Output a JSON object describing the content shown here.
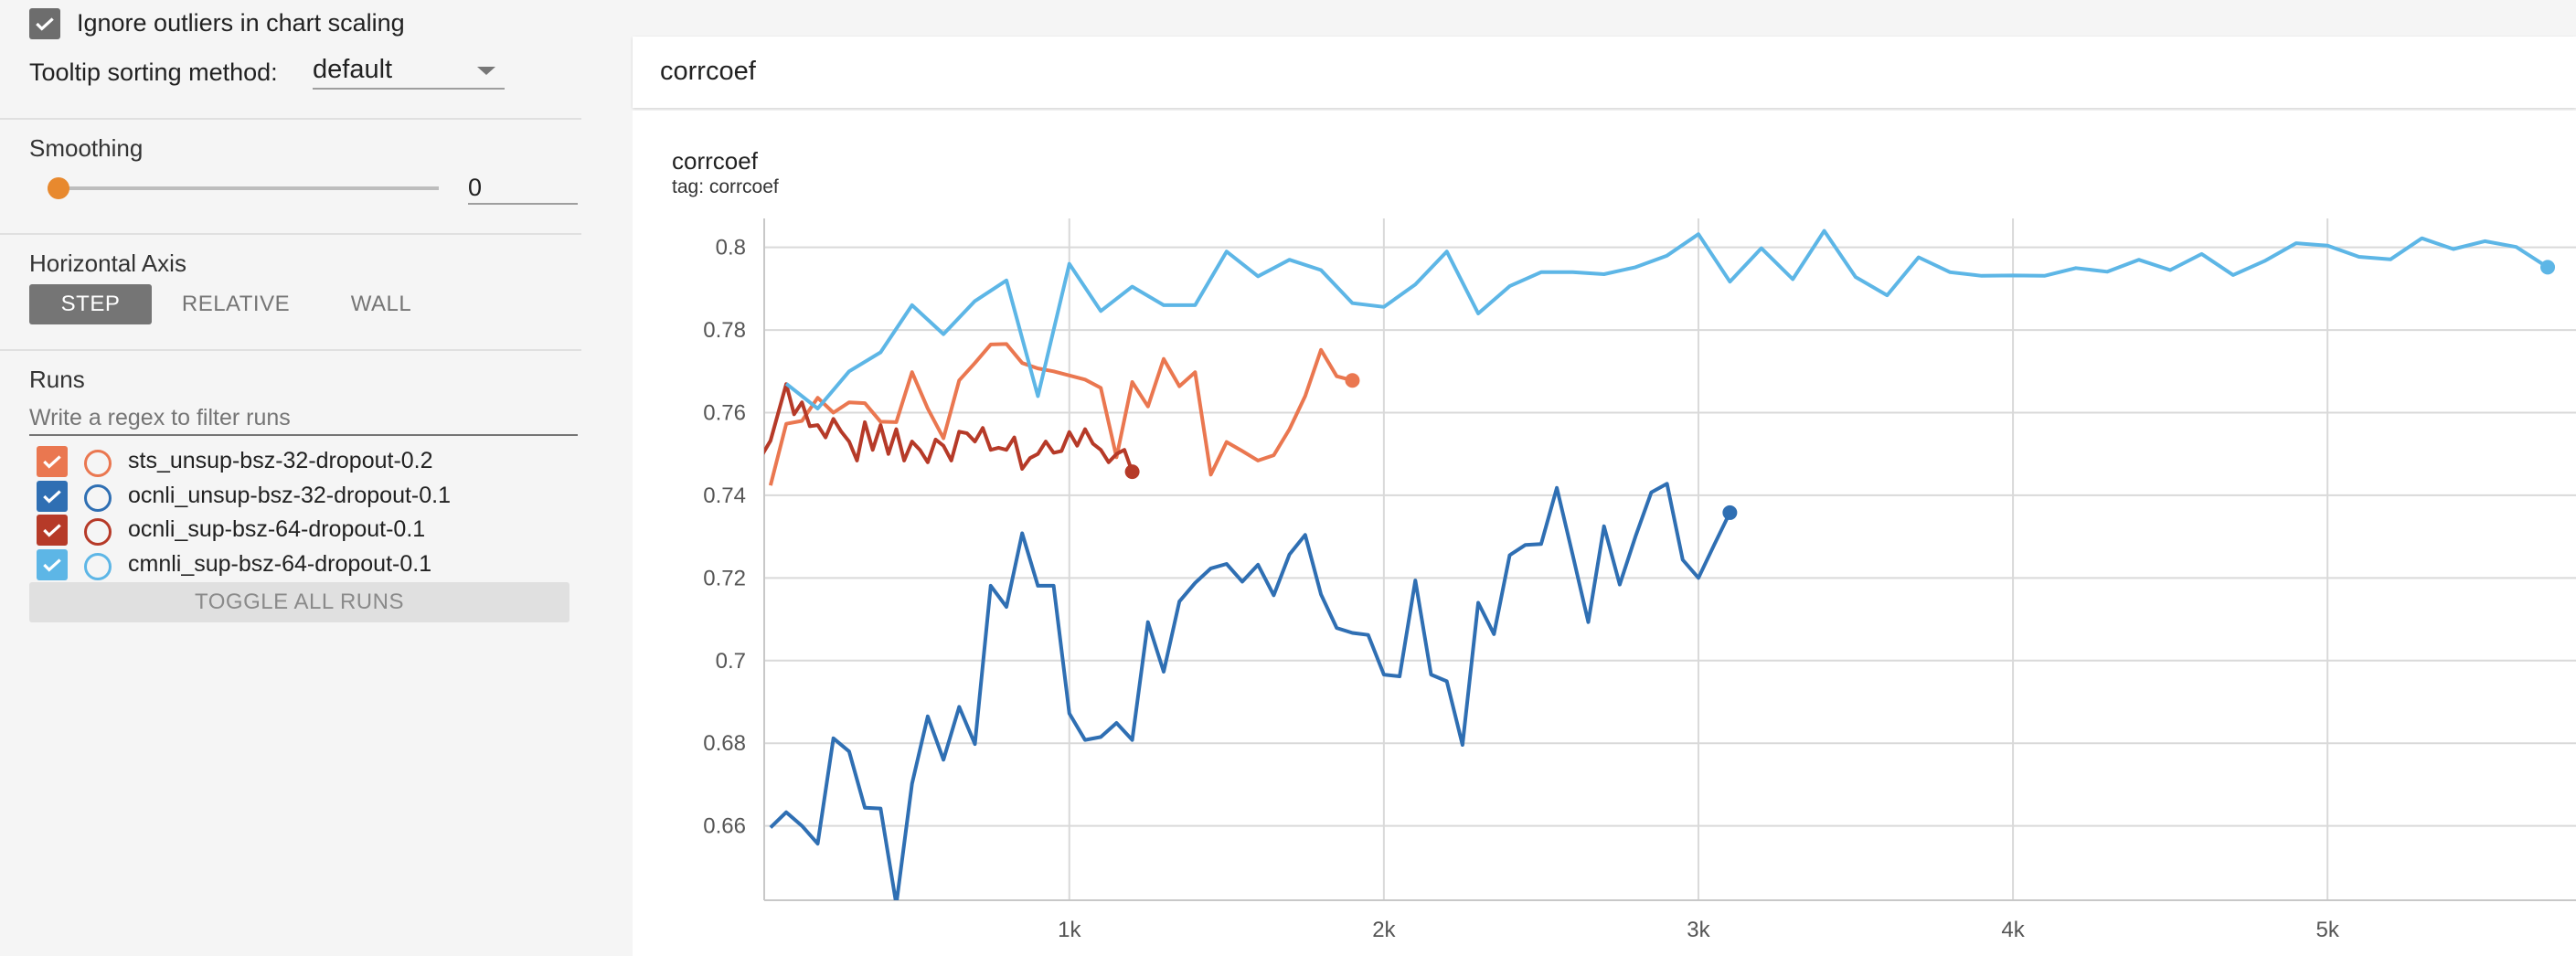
{
  "sidebar": {
    "ignore_outliers": {
      "label": "Ignore outliers in chart scaling",
      "checked": true
    },
    "tooltip_sorting": {
      "label": "Tooltip sorting method:",
      "value": "default"
    },
    "smoothing": {
      "title": "Smoothing",
      "value": "0",
      "slider_fraction": 0
    },
    "horizontal_axis": {
      "title": "Horizontal Axis",
      "options": [
        "STEP",
        "RELATIVE",
        "WALL"
      ],
      "selected": "STEP"
    },
    "runs": {
      "title": "Runs",
      "filter_placeholder": "Write a regex to filter runs",
      "items": [
        {
          "name": "sts_unsup-bsz-32-dropout-0.2",
          "color": "#ea7750",
          "checked": true
        },
        {
          "name": "ocnli_unsup-bsz-32-dropout-0.1",
          "color": "#2f6fb3",
          "checked": true
        },
        {
          "name": "ocnli_sup-bsz-64-dropout-0.1",
          "color": "#b63a28",
          "checked": true
        },
        {
          "name": "cmnli_sup-bsz-64-dropout-0.1",
          "color": "#5db6e6",
          "checked": true
        }
      ],
      "toggle_all_label": "TOGGLE ALL RUNS"
    },
    "accent_color": "#e8892e"
  },
  "main": {
    "group_title": "corrcoef",
    "card": {
      "title": "corrcoef",
      "tag": "tag: corrcoef"
    }
  },
  "chart_data": {
    "type": "line",
    "title": "corrcoef",
    "xlabel": "",
    "ylabel": "",
    "xlim": [
      30,
      5790
    ],
    "ylim": [
      0.642,
      0.807
    ],
    "grid": true,
    "x_ticks": [
      {
        "v": 1000,
        "label": "1k"
      },
      {
        "v": 2000,
        "label": "2k"
      },
      {
        "v": 3000,
        "label": "3k"
      },
      {
        "v": 4000,
        "label": "4k"
      },
      {
        "v": 5000,
        "label": "5k"
      }
    ],
    "y_ticks": [
      {
        "v": 0.66,
        "label": "0.66"
      },
      {
        "v": 0.68,
        "label": "0.68"
      },
      {
        "v": 0.7,
        "label": "0.7"
      },
      {
        "v": 0.72,
        "label": "0.72"
      },
      {
        "v": 0.74,
        "label": "0.74"
      },
      {
        "v": 0.76,
        "label": "0.76"
      },
      {
        "v": 0.78,
        "label": "0.78"
      },
      {
        "v": 0.8,
        "label": "0.8"
      }
    ],
    "series": [
      {
        "name": "sts_unsup-bsz-32-dropout-0.2",
        "color": "#ea7750",
        "points": [
          [
            50,
            0.7424
          ],
          [
            100,
            0.7573
          ],
          [
            150,
            0.758
          ],
          [
            200,
            0.7636
          ],
          [
            250,
            0.76
          ],
          [
            300,
            0.7625
          ],
          [
            350,
            0.7623
          ],
          [
            400,
            0.7578
          ],
          [
            450,
            0.7577
          ],
          [
            500,
            0.7698
          ],
          [
            550,
            0.761
          ],
          [
            600,
            0.7538
          ],
          [
            650,
            0.7678
          ],
          [
            700,
            0.772
          ],
          [
            750,
            0.7765
          ],
          [
            800,
            0.7766
          ],
          [
            850,
            0.772
          ],
          [
            900,
            0.7707
          ],
          [
            950,
            0.77
          ],
          [
            1000,
            0.769
          ],
          [
            1050,
            0.768
          ],
          [
            1100,
            0.766
          ],
          [
            1150,
            0.7492
          ],
          [
            1200,
            0.7674
          ],
          [
            1250,
            0.7615
          ],
          [
            1300,
            0.773
          ],
          [
            1350,
            0.7664
          ],
          [
            1400,
            0.7698
          ],
          [
            1450,
            0.745
          ],
          [
            1500,
            0.7529
          ],
          [
            1550,
            0.7507
          ],
          [
            1600,
            0.7484
          ],
          [
            1650,
            0.7497
          ],
          [
            1700,
            0.756
          ],
          [
            1750,
            0.764
          ],
          [
            1800,
            0.7752
          ],
          [
            1850,
            0.7688
          ],
          [
            1900,
            0.7678
          ]
        ]
      },
      {
        "name": "ocnli_unsup-bsz-32-dropout-0.1",
        "color": "#2f6fb3",
        "points": [
          [
            50,
            0.6596
          ],
          [
            100,
            0.6633
          ],
          [
            150,
            0.66
          ],
          [
            200,
            0.6557
          ],
          [
            250,
            0.6812
          ],
          [
            300,
            0.678
          ],
          [
            350,
            0.6644
          ],
          [
            400,
            0.6642
          ],
          [
            450,
            0.641
          ],
          [
            500,
            0.6702
          ],
          [
            550,
            0.6865
          ],
          [
            600,
            0.676
          ],
          [
            650,
            0.6888
          ],
          [
            700,
            0.6798
          ],
          [
            750,
            0.7181
          ],
          [
            800,
            0.713
          ],
          [
            850,
            0.7308
          ],
          [
            900,
            0.7181
          ],
          [
            950,
            0.7181
          ],
          [
            1000,
            0.6872
          ],
          [
            1050,
            0.6808
          ],
          [
            1100,
            0.6815
          ],
          [
            1150,
            0.6849
          ],
          [
            1200,
            0.6808
          ],
          [
            1250,
            0.7093
          ],
          [
            1300,
            0.6973
          ],
          [
            1350,
            0.7143
          ],
          [
            1400,
            0.7188
          ],
          [
            1450,
            0.7223
          ],
          [
            1500,
            0.7234
          ],
          [
            1550,
            0.7191
          ],
          [
            1600,
            0.7232
          ],
          [
            1650,
            0.7158
          ],
          [
            1700,
            0.7257
          ],
          [
            1750,
            0.7304
          ],
          [
            1800,
            0.716
          ],
          [
            1850,
            0.7079
          ],
          [
            1900,
            0.7067
          ],
          [
            1950,
            0.7062
          ],
          [
            2000,
            0.6966
          ],
          [
            2050,
            0.6962
          ],
          [
            2100,
            0.7194
          ],
          [
            2150,
            0.6966
          ],
          [
            2200,
            0.695
          ],
          [
            2250,
            0.6796
          ],
          [
            2300,
            0.714
          ],
          [
            2350,
            0.7064
          ],
          [
            2400,
            0.7255
          ],
          [
            2450,
            0.728
          ],
          [
            2500,
            0.7282
          ],
          [
            2550,
            0.7418
          ],
          [
            2600,
            0.7257
          ],
          [
            2650,
            0.7093
          ],
          [
            2700,
            0.7325
          ],
          [
            2750,
            0.7184
          ],
          [
            2800,
            0.73
          ],
          [
            2850,
            0.7407
          ],
          [
            2900,
            0.7428
          ],
          [
            2950,
            0.7244
          ],
          [
            3000,
            0.72
          ],
          [
            3050,
            0.728
          ],
          [
            3100,
            0.7358
          ]
        ]
      },
      {
        "name": "ocnli_sup-bsz-64-dropout-0.1",
        "color": "#b63a28",
        "points": [
          [
            25,
            0.75
          ],
          [
            50,
            0.7532
          ],
          [
            100,
            0.7669
          ],
          [
            125,
            0.7596
          ],
          [
            150,
            0.7625
          ],
          [
            175,
            0.7567
          ],
          [
            200,
            0.757
          ],
          [
            225,
            0.754
          ],
          [
            250,
            0.7585
          ],
          [
            275,
            0.7554
          ],
          [
            300,
            0.753
          ],
          [
            325,
            0.7484
          ],
          [
            350,
            0.7577
          ],
          [
            375,
            0.751
          ],
          [
            400,
            0.757
          ],
          [
            425,
            0.75
          ],
          [
            450,
            0.756
          ],
          [
            475,
            0.7484
          ],
          [
            500,
            0.753
          ],
          [
            525,
            0.751
          ],
          [
            550,
            0.748
          ],
          [
            575,
            0.7535
          ],
          [
            600,
            0.752
          ],
          [
            625,
            0.7484
          ],
          [
            650,
            0.7554
          ],
          [
            675,
            0.755
          ],
          [
            700,
            0.753
          ],
          [
            725,
            0.7563
          ],
          [
            750,
            0.751
          ],
          [
            775,
            0.7515
          ],
          [
            800,
            0.751
          ],
          [
            825,
            0.754
          ],
          [
            850,
            0.7464
          ],
          [
            875,
            0.749
          ],
          [
            900,
            0.75
          ],
          [
            925,
            0.753
          ],
          [
            950,
            0.7503
          ],
          [
            975,
            0.7507
          ],
          [
            1000,
            0.7553
          ],
          [
            1025,
            0.752
          ],
          [
            1050,
            0.756
          ],
          [
            1075,
            0.7525
          ],
          [
            1100,
            0.751
          ],
          [
            1125,
            0.748
          ],
          [
            1150,
            0.75
          ],
          [
            1175,
            0.751
          ],
          [
            1200,
            0.7457
          ]
        ]
      },
      {
        "name": "cmnli_sup-bsz-64-dropout-0.1",
        "color": "#5db6e6",
        "points": [
          [
            100,
            0.767
          ],
          [
            200,
            0.761
          ],
          [
            300,
            0.77
          ],
          [
            400,
            0.7746
          ],
          [
            500,
            0.786
          ],
          [
            600,
            0.779
          ],
          [
            700,
            0.787
          ],
          [
            800,
            0.792
          ],
          [
            900,
            0.764
          ],
          [
            1000,
            0.796
          ],
          [
            1100,
            0.7846
          ],
          [
            1200,
            0.7905
          ],
          [
            1300,
            0.786
          ],
          [
            1400,
            0.786
          ],
          [
            1500,
            0.799
          ],
          [
            1600,
            0.793
          ],
          [
            1700,
            0.797
          ],
          [
            1800,
            0.7945
          ],
          [
            1900,
            0.7865
          ],
          [
            2000,
            0.7856
          ],
          [
            2100,
            0.791
          ],
          [
            2200,
            0.799
          ],
          [
            2300,
            0.784
          ],
          [
            2400,
            0.7906
          ],
          [
            2500,
            0.794
          ],
          [
            2600,
            0.794
          ],
          [
            2700,
            0.7935
          ],
          [
            2800,
            0.7952
          ],
          [
            2900,
            0.798
          ],
          [
            3000,
            0.8032
          ],
          [
            3100,
            0.7917
          ],
          [
            3200,
            0.7998
          ],
          [
            3300,
            0.7923
          ],
          [
            3400,
            0.804
          ],
          [
            3500,
            0.7928
          ],
          [
            3600,
            0.7884
          ],
          [
            3700,
            0.7976
          ],
          [
            3800,
            0.794
          ],
          [
            3900,
            0.7931
          ],
          [
            4000,
            0.7932
          ],
          [
            4100,
            0.7931
          ],
          [
            4200,
            0.795
          ],
          [
            4300,
            0.7941
          ],
          [
            4400,
            0.797
          ],
          [
            4500,
            0.7945
          ],
          [
            4600,
            0.7984
          ],
          [
            4700,
            0.7933
          ],
          [
            4800,
            0.7967
          ],
          [
            4900,
            0.801
          ],
          [
            5000,
            0.8004
          ],
          [
            5100,
            0.7977
          ],
          [
            5200,
            0.7971
          ],
          [
            5300,
            0.8022
          ],
          [
            5400,
            0.7996
          ],
          [
            5500,
            0.8015
          ],
          [
            5600,
            0.8001
          ],
          [
            5700,
            0.7952
          ]
        ]
      }
    ]
  }
}
